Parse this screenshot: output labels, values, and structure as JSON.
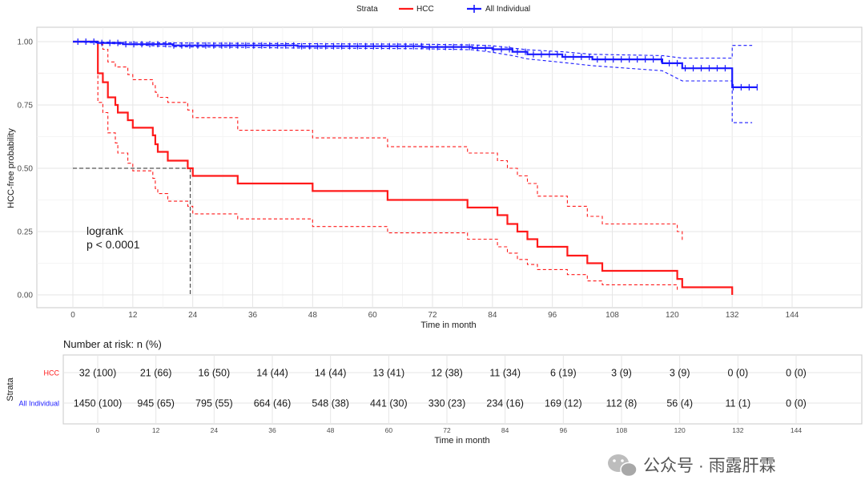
{
  "legend": {
    "title": "Strata",
    "items": [
      {
        "label": "HCC",
        "color": "#ff1a1a"
      },
      {
        "label": "All Individual",
        "color": "#1a1aff"
      }
    ]
  },
  "chart_data": {
    "type": "line",
    "subtype": "kaplan-meier",
    "xlabel": "Time in month",
    "ylabel": "HCC-free probability",
    "xlim": [
      0,
      144
    ],
    "ylim": [
      0,
      1
    ],
    "x_ticks": [
      0,
      12,
      24,
      36,
      48,
      60,
      72,
      84,
      96,
      108,
      120,
      132,
      144
    ],
    "y_ticks": [
      "0.00",
      "0.25",
      "0.50",
      "0.75",
      "1.00"
    ],
    "grid": true,
    "legend_position": "top",
    "series": [
      {
        "name": "HCC",
        "color": "#ff1a1a",
        "survival": [
          [
            0,
            1.0
          ],
          [
            5,
            1.0
          ],
          [
            5,
            0.875
          ],
          [
            6,
            0.875
          ],
          [
            6,
            0.84
          ],
          [
            7,
            0.84
          ],
          [
            7,
            0.78
          ],
          [
            8.5,
            0.78
          ],
          [
            8.5,
            0.75
          ],
          [
            9,
            0.75
          ],
          [
            9,
            0.72
          ],
          [
            11,
            0.72
          ],
          [
            11,
            0.69
          ],
          [
            12,
            0.69
          ],
          [
            12,
            0.66
          ],
          [
            16,
            0.66
          ],
          [
            16,
            0.63
          ],
          [
            16.5,
            0.63
          ],
          [
            16.5,
            0.595
          ],
          [
            17,
            0.595
          ],
          [
            17,
            0.565
          ],
          [
            19,
            0.565
          ],
          [
            19,
            0.53
          ],
          [
            23,
            0.53
          ],
          [
            23,
            0.5
          ],
          [
            24,
            0.5
          ],
          [
            24,
            0.47
          ],
          [
            33,
            0.47
          ],
          [
            33,
            0.44
          ],
          [
            48,
            0.44
          ],
          [
            48,
            0.41
          ],
          [
            63,
            0.41
          ],
          [
            63,
            0.375
          ],
          [
            79,
            0.375
          ],
          [
            79,
            0.345
          ],
          [
            85,
            0.345
          ],
          [
            85,
            0.315
          ],
          [
            87,
            0.315
          ],
          [
            87,
            0.28
          ],
          [
            89,
            0.28
          ],
          [
            89,
            0.25
          ],
          [
            91,
            0.25
          ],
          [
            91,
            0.22
          ],
          [
            93,
            0.22
          ],
          [
            93,
            0.19
          ],
          [
            99,
            0.19
          ],
          [
            99,
            0.155
          ],
          [
            103,
            0.155
          ],
          [
            103,
            0.125
          ],
          [
            106,
            0.125
          ],
          [
            106,
            0.095
          ],
          [
            121,
            0.095
          ],
          [
            121,
            0.063
          ],
          [
            122,
            0.063
          ],
          [
            122,
            0.03
          ],
          [
            132,
            0.03
          ],
          [
            132,
            0.0
          ]
        ],
        "lower": [
          [
            5,
            1.0
          ],
          [
            5,
            0.76
          ],
          [
            6,
            0.76
          ],
          [
            6,
            0.72
          ],
          [
            7,
            0.72
          ],
          [
            7,
            0.64
          ],
          [
            8.5,
            0.64
          ],
          [
            8.5,
            0.6
          ],
          [
            9,
            0.6
          ],
          [
            9,
            0.56
          ],
          [
            11,
            0.56
          ],
          [
            11,
            0.52
          ],
          [
            12,
            0.52
          ],
          [
            12,
            0.49
          ],
          [
            16,
            0.49
          ],
          [
            16,
            0.46
          ],
          [
            16.5,
            0.46
          ],
          [
            16.5,
            0.42
          ],
          [
            17,
            0.42
          ],
          [
            17,
            0.4
          ],
          [
            19,
            0.4
          ],
          [
            19,
            0.37
          ],
          [
            23,
            0.37
          ],
          [
            23,
            0.35
          ],
          [
            24,
            0.35
          ],
          [
            24,
            0.32
          ],
          [
            33,
            0.32
          ],
          [
            33,
            0.3
          ],
          [
            48,
            0.3
          ],
          [
            48,
            0.27
          ],
          [
            63,
            0.27
          ],
          [
            63,
            0.245
          ],
          [
            79,
            0.245
          ],
          [
            79,
            0.22
          ],
          [
            85,
            0.22
          ],
          [
            85,
            0.19
          ],
          [
            87,
            0.19
          ],
          [
            87,
            0.165
          ],
          [
            89,
            0.165
          ],
          [
            89,
            0.14
          ],
          [
            91,
            0.14
          ],
          [
            91,
            0.12
          ],
          [
            93,
            0.12
          ],
          [
            93,
            0.1
          ],
          [
            99,
            0.1
          ],
          [
            99,
            0.08
          ],
          [
            103,
            0.08
          ],
          [
            103,
            0.055
          ],
          [
            106,
            0.055
          ],
          [
            106,
            0.04
          ],
          [
            121,
            0.04
          ],
          [
            121,
            0.02
          ]
        ],
        "upper": [
          [
            5,
            1.0
          ],
          [
            5,
            0.99
          ],
          [
            6,
            0.99
          ],
          [
            6,
            0.97
          ],
          [
            7,
            0.97
          ],
          [
            7,
            0.92
          ],
          [
            8.5,
            0.92
          ],
          [
            8.5,
            0.9
          ],
          [
            11,
            0.9
          ],
          [
            11,
            0.87
          ],
          [
            12,
            0.87
          ],
          [
            12,
            0.85
          ],
          [
            16,
            0.85
          ],
          [
            16,
            0.83
          ],
          [
            16.5,
            0.83
          ],
          [
            16.5,
            0.8
          ],
          [
            17,
            0.8
          ],
          [
            17,
            0.78
          ],
          [
            19,
            0.78
          ],
          [
            19,
            0.76
          ],
          [
            23,
            0.76
          ],
          [
            23,
            0.73
          ],
          [
            24,
            0.73
          ],
          [
            24,
            0.7
          ],
          [
            33,
            0.7
          ],
          [
            33,
            0.65
          ],
          [
            48,
            0.65
          ],
          [
            48,
            0.62
          ],
          [
            63,
            0.62
          ],
          [
            63,
            0.585
          ],
          [
            79,
            0.585
          ],
          [
            79,
            0.56
          ],
          [
            85,
            0.56
          ],
          [
            85,
            0.53
          ],
          [
            87,
            0.53
          ],
          [
            87,
            0.5
          ],
          [
            89,
            0.5
          ],
          [
            89,
            0.47
          ],
          [
            91,
            0.47
          ],
          [
            91,
            0.44
          ],
          [
            93,
            0.44
          ],
          [
            93,
            0.39
          ],
          [
            99,
            0.39
          ],
          [
            99,
            0.35
          ],
          [
            103,
            0.35
          ],
          [
            103,
            0.31
          ],
          [
            106,
            0.31
          ],
          [
            106,
            0.28
          ],
          [
            121,
            0.28
          ],
          [
            121,
            0.25
          ],
          [
            122,
            0.25
          ],
          [
            122,
            0.21
          ]
        ]
      },
      {
        "name": "All Individual",
        "color": "#1a1aff",
        "survival": [
          [
            0,
            1.0
          ],
          [
            5,
            1.0
          ],
          [
            5,
            0.995
          ],
          [
            10,
            0.995
          ],
          [
            10,
            0.99
          ],
          [
            20,
            0.99
          ],
          [
            20,
            0.985
          ],
          [
            45,
            0.985
          ],
          [
            45,
            0.982
          ],
          [
            70,
            0.982
          ],
          [
            70,
            0.979
          ],
          [
            80,
            0.979
          ],
          [
            80,
            0.975
          ],
          [
            84,
            0.975
          ],
          [
            84,
            0.97
          ],
          [
            88,
            0.97
          ],
          [
            88,
            0.96
          ],
          [
            91,
            0.96
          ],
          [
            91,
            0.95
          ],
          [
            98,
            0.95
          ],
          [
            98,
            0.94
          ],
          [
            104,
            0.94
          ],
          [
            104,
            0.93
          ],
          [
            118,
            0.93
          ],
          [
            118,
            0.915
          ],
          [
            122,
            0.915
          ],
          [
            122,
            0.895
          ],
          [
            132,
            0.895
          ],
          [
            132,
            0.82
          ],
          [
            137,
            0.82
          ]
        ],
        "lower": [
          [
            0,
            1.0
          ],
          [
            20,
            0.98
          ],
          [
            45,
            0.975
          ],
          [
            70,
            0.972
          ],
          [
            80,
            0.968
          ],
          [
            84,
            0.958
          ],
          [
            88,
            0.945
          ],
          [
            91,
            0.932
          ],
          [
            98,
            0.918
          ],
          [
            104,
            0.905
          ],
          [
            118,
            0.885
          ],
          [
            122,
            0.845
          ],
          [
            132,
            0.845
          ],
          [
            132,
            0.68
          ],
          [
            136,
            0.68
          ]
        ],
        "upper": [
          [
            0,
            1.0
          ],
          [
            20,
            0.995
          ],
          [
            45,
            0.992
          ],
          [
            70,
            0.99
          ],
          [
            80,
            0.987
          ],
          [
            84,
            0.984
          ],
          [
            88,
            0.975
          ],
          [
            91,
            0.968
          ],
          [
            98,
            0.96
          ],
          [
            104,
            0.95
          ],
          [
            118,
            0.945
          ],
          [
            122,
            0.935
          ],
          [
            132,
            0.935
          ],
          [
            132,
            0.985
          ],
          [
            136,
            0.985
          ]
        ]
      }
    ],
    "median_reference": {
      "y": 0.5,
      "x": 23.5
    },
    "annotation": {
      "line1": "logrank",
      "line2": "p < 0.0001"
    }
  },
  "risk_table": {
    "title": "Number at risk: n (%)",
    "y_title": "Strata",
    "x_title": "Time in month",
    "times": [
      0,
      12,
      24,
      36,
      48,
      60,
      72,
      84,
      96,
      108,
      120,
      132,
      144
    ],
    "rows": [
      {
        "label": "HCC",
        "color": "#ff1a1a",
        "values": [
          "32 (100)",
          "21 (66)",
          "16 (50)",
          "14 (44)",
          "14 (44)",
          "13 (41)",
          "12 (38)",
          "11 (34)",
          "6 (19)",
          "3 (9)",
          "3 (9)",
          "0 (0)",
          "0 (0)"
        ]
      },
      {
        "label": "All Individual",
        "color": "#1a1aff",
        "values": [
          "1450 (100)",
          "945 (65)",
          "795 (55)",
          "664 (46)",
          "548 (38)",
          "441 (30)",
          "330 (23)",
          "234 (16)",
          "169 (12)",
          "112 (8)",
          "56 (4)",
          "11 (1)",
          "0 (0)"
        ]
      }
    ]
  },
  "watermark": "公众号 · 雨露肝霖"
}
